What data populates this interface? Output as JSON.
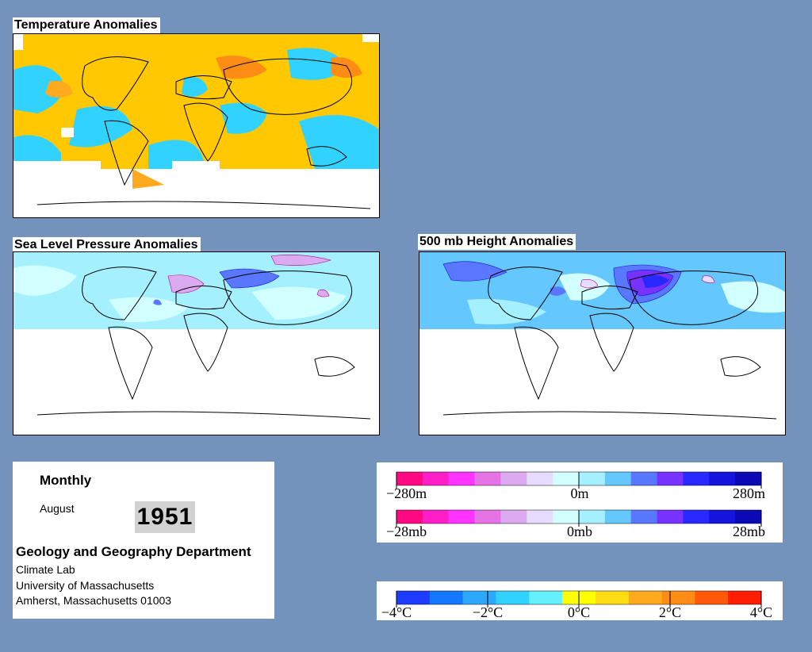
{
  "panels": {
    "temperature": {
      "title": "Temperature Anomalies"
    },
    "slp": {
      "title": "Sea Level Pressure Anomalies"
    },
    "height": {
      "title": "500 mb Height Anomalies"
    }
  },
  "info": {
    "mode": "Monthly",
    "month": "August",
    "year": "1951",
    "department": "Geology and Geography Department",
    "lab": "Climate Lab",
    "university": "University of Massachusetts",
    "address": "Amherst, Massachusetts 01003"
  },
  "legends": {
    "height": {
      "labels": [
        "−280m",
        "0m",
        "280m"
      ]
    },
    "pressure": {
      "labels": [
        "−28mb",
        "0mb",
        "28mb"
      ]
    },
    "temperature": {
      "labels": [
        "−4°C",
        "−2°C",
        "0°C",
        "2°C",
        "4°C"
      ]
    }
  },
  "colors": {
    "background": "#7393bd",
    "anomaly_scale": [
      "#ff0a82",
      "#ff1ec8",
      "#ff33ff",
      "#e673e6",
      "#dcaaf0",
      "#e6dcff",
      "#d2ffff",
      "#a5f0ff",
      "#64c8ff",
      "#5a78ff",
      "#7832ff",
      "#2828ff",
      "#1414dc",
      "#0a0ab4"
    ],
    "temperature_scale": [
      "#1e3cff",
      "#1478ff",
      "#2ca8ff",
      "#32d2ff",
      "#64f0ff",
      "#ffff00",
      "#ffdc14",
      "#ffaa1e",
      "#ff8c14",
      "#ff5a0a",
      "#ff1e00"
    ]
  }
}
